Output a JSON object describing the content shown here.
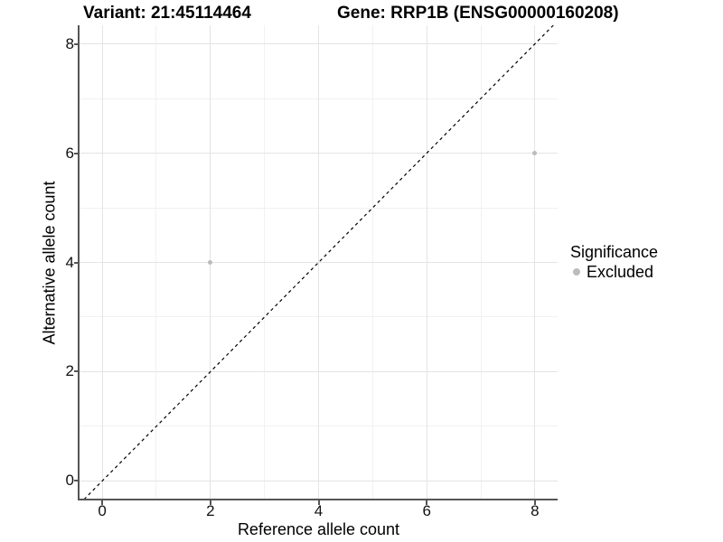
{
  "header": {
    "title_left": "Variant: 21:45114464",
    "title_right": "Gene: RRP1B (ENSG00000160208)"
  },
  "chart_data": {
    "type": "scatter",
    "title_left": "Variant: 21:45114464",
    "title_right": "Gene: RRP1B (ENSG00000160208)",
    "xlabel": "Reference allele count",
    "ylabel": "Alternative allele count",
    "xlim": [
      -0.42,
      8.42
    ],
    "ylim": [
      -0.34,
      8.34
    ],
    "xticks": [
      0,
      2,
      4,
      6,
      8
    ],
    "yticks": [
      0,
      2,
      4,
      6,
      8
    ],
    "xminor": [
      1,
      3,
      5,
      7
    ],
    "yminor": [
      1,
      3,
      5,
      7
    ],
    "grid": true,
    "series": [
      {
        "name": "Excluded",
        "color": "#bcbcbc",
        "points": [
          {
            "x": 2,
            "y": 4
          },
          {
            "x": 8,
            "y": 6
          }
        ]
      }
    ],
    "reference_line": {
      "type": "identity",
      "style": "dashed",
      "color": "#000000",
      "from": [
        -0.42,
        -0.42
      ],
      "to": [
        8.42,
        8.42
      ]
    },
    "legend": {
      "title": "Significance",
      "position": "right",
      "entries": [
        {
          "label": "Excluded",
          "color": "#bcbcbc",
          "marker": "circle"
        }
      ]
    },
    "colors": {
      "grid_major": "#e4e4e4",
      "grid_minor": "#f1f1f1",
      "axis_line": "#555555",
      "point": "#bcbcbc",
      "text": "#000000"
    }
  }
}
